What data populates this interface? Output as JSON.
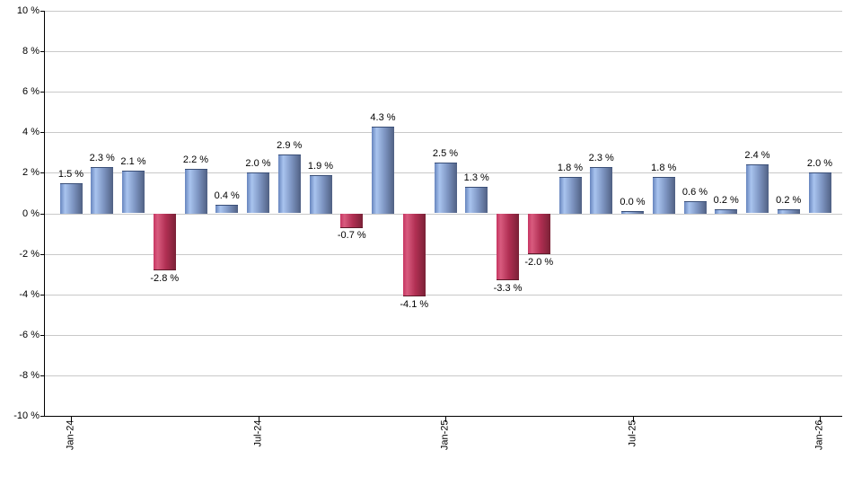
{
  "chart_data": {
    "type": "bar",
    "title": "",
    "description": "Monthly percentage returns bar chart, Jan-24 through Jan-26",
    "ylim": [
      -10,
      10
    ],
    "y_tick_step": 2,
    "grid": true,
    "legend": null,
    "y_tick_labels": [
      "10 %",
      "8 %",
      "6 %",
      "4 %",
      "2 %",
      "0 %",
      "-2 %",
      "-4 %",
      "-6 %",
      "-8 %",
      "-10 %"
    ],
    "x_tick_labels": [
      {
        "bar_index": 0,
        "label": "Jan-24"
      },
      {
        "bar_index": 6,
        "label": "Jul-24"
      },
      {
        "bar_index": 12,
        "label": "Jan-25"
      },
      {
        "bar_index": 18,
        "label": "Jul-25"
      },
      {
        "bar_index": 24,
        "label": "Jan-26"
      }
    ],
    "values": [
      1.5,
      2.3,
      2.1,
      -2.8,
      2.2,
      0.4,
      2.0,
      2.9,
      1.9,
      -0.7,
      4.3,
      -4.1,
      2.5,
      1.3,
      -3.3,
      -2.0,
      1.8,
      2.3,
      0.0,
      1.8,
      0.6,
      0.2,
      2.4,
      0.2,
      2.0
    ],
    "value_labels": [
      "1.5 %",
      "2.3 %",
      "2.1 %",
      "-2.8 %",
      "2.2 %",
      "0.4 %",
      "2.0 %",
      "2.9 %",
      "1.9 %",
      "-0.7 %",
      "4.3 %",
      "-4.1 %",
      "2.5 %",
      "1.3 %",
      "-3.3 %",
      "-2.0 %",
      "1.8 %",
      "2.3 %",
      "0.0 %",
      "1.8 %",
      "0.6 %",
      "0.2 %",
      "2.4 %",
      "0.2 %",
      "2.0 %"
    ],
    "colors": {
      "positive_bar_gradient": [
        "#6785bd",
        "#a9c4ef",
        "#8199c6",
        "#506083"
      ],
      "positive_bar_edge": "#3a4f78",
      "negative_bar_gradient": [
        "#c73562",
        "#d85b7e",
        "#b12f53",
        "#7a2136"
      ],
      "negative_bar_edge": "#5e1a2a",
      "gridline": "#c9c9c9",
      "axis": "#000000",
      "label_text": "#000000"
    }
  }
}
